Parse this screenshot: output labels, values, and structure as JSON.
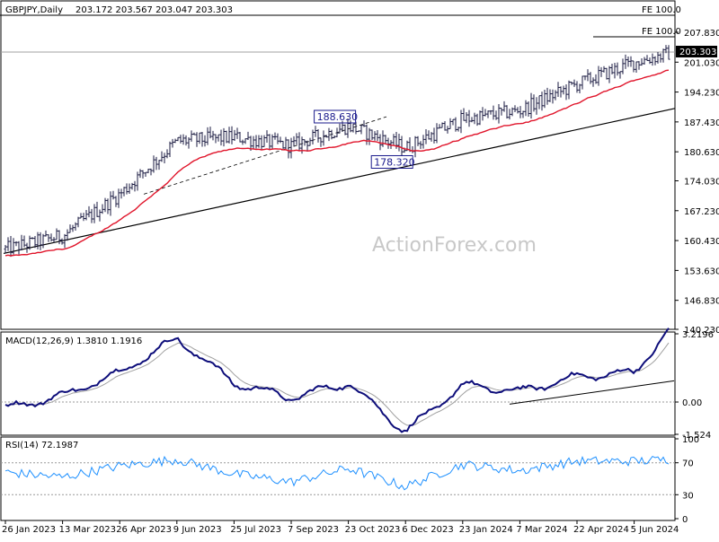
{
  "chart_data": {
    "type": "line",
    "symbol": "GBPJPY,Daily",
    "ohlc_header": "203.172 203.567 203.047 203.303",
    "watermark": "ActionForex.com",
    "colors": {
      "price": "#1a1a40",
      "ema": "#e0142a",
      "macd": "#0d0d7a",
      "signal": "#a0a0a0",
      "rsi": "#1e90ff",
      "trendline": "#000000",
      "label_box": "#1a1a8c"
    },
    "x_labels": [
      "26 Jan 2023",
      "13 Mar 2023",
      "26 Apr 2023",
      "9 Jun 2023",
      "25 Jul 2023",
      "7 Sep 2023",
      "23 Oct 2023",
      "6 Dec 2023",
      "23 Jan 2024",
      "7 Mar 2024",
      "22 Apr 2024",
      "5 Jun 2024"
    ],
    "price_panel": {
      "y_ticks": [
        "207.830",
        "201.030",
        "194.230",
        "187.430",
        "180.630",
        "174.030",
        "167.230",
        "160.430",
        "153.630",
        "146.830",
        "140.230"
      ],
      "ylim": [
        140.23,
        211.5
      ],
      "current_price": "203.303",
      "fe_labels": [
        "FE 100.0",
        "FE 100.0"
      ],
      "annotations": [
        {
          "text": "188.630",
          "x": "23 Oct 2023",
          "y": 188.63
        },
        {
          "text": "178.320",
          "x": "6 Dec 2023",
          "y": 178.32
        }
      ],
      "price_series": [
        {
          "x": "26 Jan 2023",
          "y": 158.5
        },
        {
          "x": "13 Mar 2023",
          "y": 161.5
        },
        {
          "x": "26 Apr 2023",
          "y": 171.0
        },
        {
          "x": "9 Jun 2023",
          "y": 183.0
        },
        {
          "x": "25 Jul 2023",
          "y": 184.0
        },
        {
          "x": "7 Sep 2023",
          "y": 182.0
        },
        {
          "x": "23 Oct 2023",
          "y": 186.5
        },
        {
          "x": "6 Dec 2023",
          "y": 181.5
        },
        {
          "x": "23 Jan 2024",
          "y": 188.0
        },
        {
          "x": "7 Mar 2024",
          "y": 190.0
        },
        {
          "x": "22 Apr 2024",
          "y": 196.0
        },
        {
          "x": "5 Jun 2024",
          "y": 201.0
        }
      ]
    },
    "macd_panel": {
      "label": "MACD(12,26,9) 1.3810 1.1916",
      "y_ticks": [
        "3.2196",
        "0.00",
        "-1.524"
      ],
      "ylim": [
        -1.524,
        3.2196
      ],
      "macd_series": [
        {
          "x": "26 Jan 2023",
          "y": -0.3
        },
        {
          "x": "13 Mar 2023",
          "y": 0.3
        },
        {
          "x": "26 Apr 2023",
          "y": 1.4
        },
        {
          "x": "9 Jun 2023",
          "y": 3.0
        },
        {
          "x": "25 Jul 2023",
          "y": 0.9
        },
        {
          "x": "7 Sep 2023",
          "y": 0.2
        },
        {
          "x": "23 Oct 2023",
          "y": 0.9
        },
        {
          "x": "6 Dec 2023",
          "y": -1.4
        },
        {
          "x": "23 Jan 2024",
          "y": 0.8
        },
        {
          "x": "7 Mar 2024",
          "y": 0.5
        },
        {
          "x": "22 Apr 2024",
          "y": 1.2
        },
        {
          "x": "5 Jun 2024",
          "y": 1.4
        }
      ]
    },
    "rsi_panel": {
      "label": "RSI(14) 72.1987",
      "y_ticks": [
        "100",
        "70",
        "30",
        "0"
      ],
      "ylim": [
        0,
        100
      ],
      "rsi_series": [
        {
          "x": "26 Jan 2023",
          "y": 58
        },
        {
          "x": "13 Mar 2023",
          "y": 52
        },
        {
          "x": "26 Apr 2023",
          "y": 66
        },
        {
          "x": "9 Jun 2023",
          "y": 74
        },
        {
          "x": "25 Jul 2023",
          "y": 56
        },
        {
          "x": "7 Sep 2023",
          "y": 46
        },
        {
          "x": "23 Oct 2023",
          "y": 63
        },
        {
          "x": "6 Dec 2023",
          "y": 40
        },
        {
          "x": "23 Jan 2024",
          "y": 68
        },
        {
          "x": "7 Mar 2024",
          "y": 60
        },
        {
          "x": "22 Apr 2024",
          "y": 72
        },
        {
          "x": "5 Jun 2024",
          "y": 72
        }
      ]
    }
  }
}
